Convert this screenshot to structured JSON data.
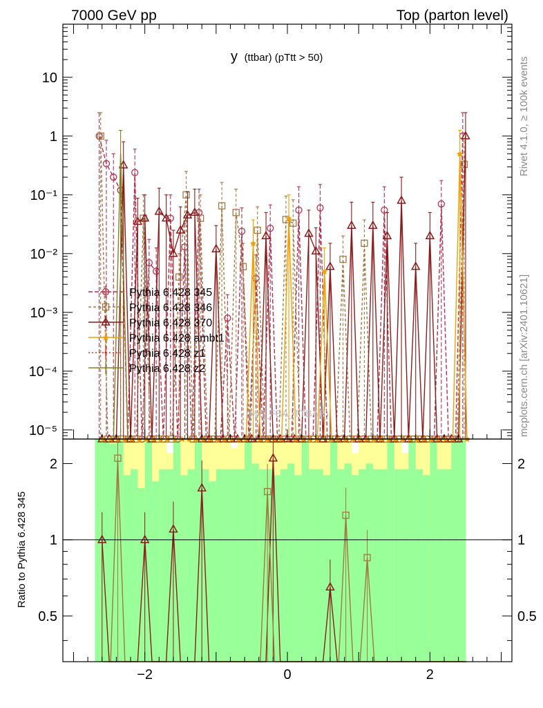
{
  "header": {
    "left": "7000 GeV pp",
    "right": "Top (parton level)"
  },
  "side_labels": {
    "rivet": "Rivet 4.1.0, ≥ 100k events",
    "mcplots": "mcplots.cern.ch [arXiv:2401.10621]"
  },
  "watermark": "(MC_FBA_TTBAR)",
  "colors": {
    "band_yellow": "#ffff99",
    "band_green": "#99ff99",
    "frame": "#000000"
  },
  "chart_data": [
    {
      "type": "line",
      "title": "y (ttbar) (pTtt > 50)",
      "title_main": "y",
      "title_sub": "(ttbar) (pTtt > 50)",
      "xlabel": "",
      "ylabel": "",
      "xlim": [
        -3.15,
        3.15
      ],
      "ylim": [
        7e-06,
        80
      ],
      "yscale": "log",
      "x_ticks": [
        -2,
        0,
        2
      ],
      "x_tick_labels": [
        "−2",
        "0",
        "2"
      ],
      "y_ticks": [
        1e-05,
        0.0001,
        0.001,
        0.01,
        0.1,
        1,
        10
      ],
      "y_tick_labels": [
        "10⁻⁵",
        "10⁻⁴",
        "10⁻³",
        "10⁻²",
        "10⁻¹",
        "1",
        "10"
      ],
      "legend_position": "middle-left",
      "x": [
        -2.6,
        -2.5,
        -2.4,
        -2.3,
        -2.2,
        -2.1,
        -2.0,
        -1.9,
        -1.8,
        -1.7,
        -1.6,
        -1.5,
        -1.4,
        -1.3,
        -1.2,
        -1.1,
        -1.0,
        -0.9,
        -0.8,
        -0.7,
        -0.6,
        -0.5,
        -0.4,
        -0.3,
        -0.2,
        -0.1,
        0.0,
        0.1,
        0.2,
        0.3,
        0.4,
        0.5,
        0.6,
        0.7,
        0.8,
        0.9,
        1.0,
        1.1,
        1.2,
        1.3,
        1.4,
        1.5,
        1.6,
        1.7,
        1.8,
        1.9,
        2.0,
        2.1,
        2.2,
        2.3,
        2.4,
        2.5
      ],
      "series": [
        {
          "name": "Pythia 6.428 345",
          "color": "#b03050",
          "marker": "circle",
          "dash": "6,3",
          "values": [
            1.0,
            0.34,
            0.2,
            0.12,
            0.0,
            0.24,
            0.0,
            0.007,
            0.005,
            0.0,
            0.04,
            0.0,
            0.013,
            0.0,
            0.05,
            0.0,
            0.0,
            0.0,
            0.0008,
            0.0,
            0.024,
            0.0,
            0.0038,
            0.0,
            0.027,
            0.0,
            0.0,
            0.0,
            0.055,
            0.0,
            0.0,
            0.06,
            0.0,
            0.0,
            0.0,
            0.0,
            0.0,
            0.0,
            0.0,
            0.0,
            0.055,
            0.0,
            0.0,
            0.0,
            0.0,
            0.0,
            0.0,
            0.0,
            0.07,
            0.0,
            0.0,
            1.0
          ]
        },
        {
          "name": "Pythia 6.428 346",
          "color": "#a07840",
          "marker": "square",
          "dash": "4,3",
          "values": [
            1.0,
            0.0,
            0.0,
            0.0,
            0.0,
            0.0,
            0.04,
            0.0,
            0.0,
            0.0,
            0.0,
            0.004,
            0.1,
            0.0,
            0.04,
            0.0,
            0.0,
            0.065,
            0.0,
            0.05,
            0.006,
            0.0,
            0.025,
            0.0,
            0.0,
            0.0,
            0.038,
            0.033,
            0.0,
            0.0,
            0.0,
            0.0,
            0.0,
            0.0,
            0.008,
            0.0,
            0.0,
            0.015,
            0.0,
            0.0,
            0.0,
            0.0,
            0.0,
            0.0,
            0.0,
            0.0,
            0.0,
            0.0,
            0.0,
            0.0,
            0.0,
            0.33
          ]
        },
        {
          "name": "Pythia 6.428 370",
          "color": "#8b1a1a",
          "marker": "triangle",
          "dash": "",
          "values": [
            0.0,
            0.0,
            0.0,
            0.32,
            0.0,
            0.035,
            0.04,
            0.0,
            0.052,
            0.04,
            0.01,
            0.025,
            0.045,
            0.05,
            0.0,
            0.0,
            0.012,
            0.0,
            0.0,
            0.0,
            0.0,
            0.0,
            0.0,
            0.02,
            0.0,
            0.0,
            0.0,
            0.0,
            0.0,
            0.022,
            0.011,
            0.0,
            0.006,
            0.0,
            0.0,
            0.03,
            0.0,
            0.0,
            0.03,
            0.0,
            0.02,
            0.0,
            0.08,
            0.0,
            0.006,
            0.0,
            0.02,
            0.0,
            0.0,
            0.0,
            0.0,
            1.0
          ]
        },
        {
          "name": "Pythia 6.428 ambt1",
          "color": "#f0a000",
          "marker": "star",
          "dash": "",
          "values": [
            0.0,
            0.0,
            0.0,
            0.0,
            0.0,
            0.0,
            0.0,
            0.0,
            0.0,
            0.0,
            0.0,
            0.0,
            0.0,
            0.0,
            0.0,
            0.0,
            0.0,
            0.0,
            0.0,
            0.0,
            0.0,
            0.015,
            0.0,
            0.0,
            0.0,
            0.0,
            0.04,
            0.0,
            0.0,
            0.0,
            0.0,
            0.005,
            0.0,
            0.0,
            0.0,
            0.0,
            0.0,
            0.0,
            0.0,
            0.0,
            0.0,
            0.0,
            0.0,
            0.0,
            0.0,
            0.0,
            0.0,
            0.0,
            0.0,
            0.0,
            0.5,
            0.0
          ]
        },
        {
          "name": "Pythia 6.428 z1",
          "color": "#e03020",
          "marker": "dot",
          "dash": "2,3",
          "values": [
            0.0,
            0.0,
            0.0,
            0.0,
            0.0,
            0.0,
            0.0,
            0.0,
            0.0,
            0.0,
            0.0,
            0.0,
            0.0,
            0.0,
            0.0,
            0.0,
            0.0,
            0.0,
            0.0,
            0.0,
            0.0,
            0.0,
            0.0,
            0.0,
            0.0,
            0.0,
            0.0,
            0.0,
            0.0,
            0.0,
            0.0,
            0.0,
            0.0,
            0.0,
            0.0,
            0.0,
            0.0,
            0.0,
            0.0,
            0.0,
            0.0,
            0.0,
            0.0,
            0.0,
            0.0,
            0.0,
            0.0,
            0.0,
            0.0,
            0.0,
            0.0,
            0.0
          ]
        },
        {
          "name": "Pythia 6.428 z2",
          "color": "#808020",
          "marker": "none",
          "dash": "",
          "values": [
            0.0,
            0.0,
            0.5,
            0.0,
            0.0,
            0.0,
            0.0,
            0.0,
            0.0,
            0.0,
            0.0,
            0.0,
            0.0,
            0.0,
            0.0,
            0.0,
            0.0,
            0.0,
            0.0,
            0.0,
            0.0,
            0.0,
            0.0,
            0.0,
            0.0,
            0.0,
            0.0,
            0.0,
            0.0,
            0.0,
            0.0,
            0.0,
            0.0,
            0.0,
            0.0,
            0.0,
            0.0,
            0.0,
            0.0,
            0.0,
            0.0,
            0.0,
            0.0,
            0.0,
            0.0,
            0.0,
            0.0,
            0.0,
            0.0,
            0.0,
            0.0,
            0.0
          ]
        }
      ]
    },
    {
      "type": "line",
      "title": "",
      "xlabel": "",
      "ylabel": "Ratio to Pythia 6.428 345",
      "xlim": [
        -3.15,
        3.15
      ],
      "ylim": [
        0.33,
        2.5
      ],
      "yscale": "log",
      "x_ticks": [
        -2,
        0,
        2
      ],
      "x_tick_labels": [
        "−2",
        "0",
        "2"
      ],
      "y_ticks": [
        0.5,
        1,
        2
      ],
      "y_tick_labels": [
        "0.5",
        "1",
        "2"
      ],
      "reference_line": 1,
      "x": [
        -2.6,
        -2.5,
        -2.4,
        -2.3,
        -2.2,
        -2.1,
        -2.0,
        -1.9,
        -1.8,
        -1.7,
        -1.6,
        -1.5,
        -1.4,
        -1.3,
        -1.2,
        -1.1,
        -1.0,
        -0.9,
        -0.8,
        -0.7,
        -0.6,
        -0.5,
        -0.4,
        -0.3,
        -0.2,
        -0.1,
        0.0,
        0.1,
        0.2,
        0.3,
        0.4,
        0.5,
        0.6,
        0.7,
        0.8,
        0.9,
        1.0,
        1.1,
        1.2,
        1.3,
        1.4,
        1.5,
        1.6,
        1.7,
        1.8,
        1.9,
        2.0,
        2.1,
        2.2,
        2.3,
        2.4,
        2.5
      ],
      "bands": {
        "yellow_hi": [
          2.5,
          2.5,
          2.5,
          2.5,
          2.5,
          2.5,
          2.5,
          2.5,
          2.5,
          2.5,
          2.2,
          2.5,
          2.5,
          2.5,
          2.5,
          2.5,
          2.5,
          2.5,
          2.5,
          2.3,
          2.5,
          2.5,
          2.5,
          2.5,
          2.5,
          2.5,
          2.5,
          2.5,
          2.5,
          2.5,
          2.5,
          2.5,
          2.5,
          2.5,
          2.5,
          2.5,
          2.2,
          2.5,
          2.5,
          2.5,
          2.5,
          2.5,
          2.5,
          2.2,
          2.5,
          2.5,
          2.5,
          2.5,
          2.5,
          2.5,
          2.5,
          2.5
        ],
        "green_hi": [
          2.5,
          2.5,
          2.4,
          2.5,
          1.8,
          1.9,
          1.6,
          2.5,
          1.7,
          1.9,
          1.9,
          2.5,
          1.8,
          1.9,
          2.5,
          1.9,
          1.7,
          1.9,
          1.9,
          1.9,
          1.9,
          2.5,
          2.0,
          1.9,
          1.9,
          1.8,
          1.9,
          2.0,
          1.8,
          2.5,
          1.9,
          1.9,
          1.8,
          2.5,
          1.9,
          2.0,
          1.8,
          1.9,
          2.0,
          1.9,
          1.9,
          2.5,
          1.9,
          1.9,
          2.5,
          1.9,
          1.8,
          2.5,
          1.9,
          1.9,
          2.5,
          2.5
        ]
      },
      "series": [
        {
          "name": "Pythia 6.428 370",
          "color": "#8b1a1a",
          "marker": "triangle",
          "values": [
            1.0,
            0.3,
            0.3,
            0.3,
            0.3,
            0.3,
            1.0,
            0.3,
            0.3,
            0.3,
            1.1,
            0.3,
            0.3,
            0.3,
            1.6,
            0.3,
            0.3,
            0.3,
            0.3,
            0.3,
            0.3,
            0.3,
            0.3,
            0.3,
            2.1,
            0.3,
            0.3,
            0.3,
            0.3,
            0.3,
            0.3,
            0.3,
            0.65,
            0.3,
            0.3,
            0.3,
            0.3,
            0.3,
            0.3,
            0.3,
            0.3,
            0.3,
            0.3,
            0.3,
            0.3,
            0.3,
            0.3,
            0.3,
            0.3,
            0.3,
            0.3,
            0.3
          ]
        },
        {
          "name": "Pythia 6.428 346",
          "color": "#a07840",
          "marker": "square",
          "values": [
            0.3,
            0.3,
            2.1,
            0.3,
            0.3,
            0.3,
            0.3,
            0.3,
            0.3,
            0.3,
            0.3,
            0.3,
            0.3,
            0.3,
            0.3,
            0.3,
            0.3,
            0.3,
            0.3,
            0.3,
            0.3,
            0.3,
            0.3,
            1.55,
            0.3,
            0.3,
            0.3,
            0.3,
            0.3,
            0.3,
            0.3,
            0.3,
            0.3,
            0.3,
            1.25,
            0.3,
            0.3,
            0.85,
            0.3,
            0.3,
            0.3,
            0.3,
            0.3,
            0.3,
            0.3,
            0.3,
            0.3,
            0.3,
            0.3,
            0.3,
            0.3,
            0.3
          ]
        }
      ]
    }
  ]
}
